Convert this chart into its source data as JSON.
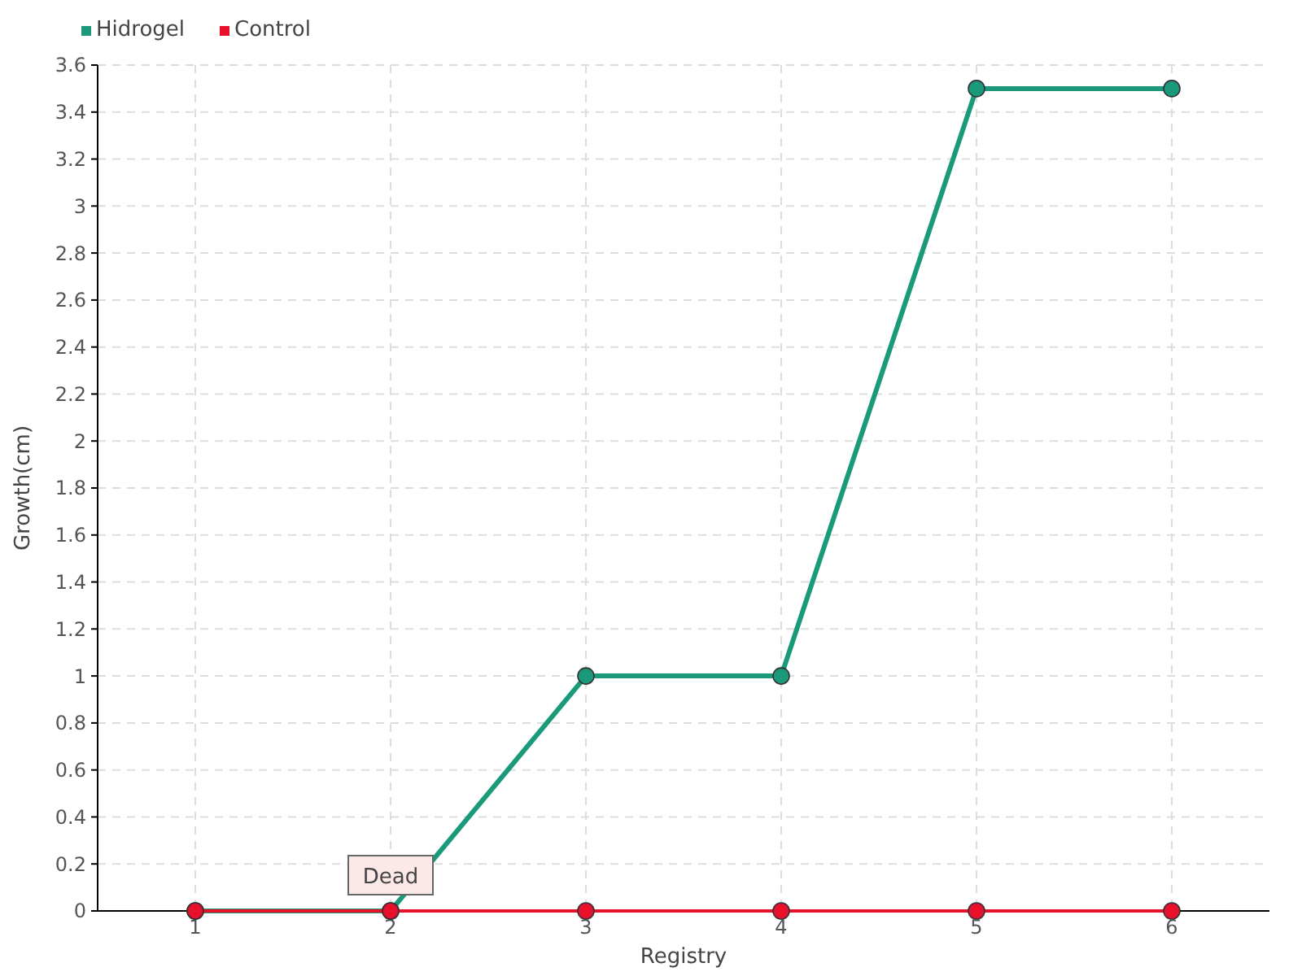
{
  "chart_data": {
    "type": "line",
    "xlabel": "Registry",
    "ylabel": "Growth(cm)",
    "categories": [
      "1",
      "2",
      "3",
      "4",
      "5",
      "6"
    ],
    "series": [
      {
        "name": "Hidrogel",
        "color": "#1a9a7a",
        "values": [
          0,
          0,
          1,
          1,
          3.5,
          3.5
        ]
      },
      {
        "name": "Control",
        "color": "#e8102a",
        "values": [
          0,
          0,
          0,
          0,
          0,
          0
        ]
      }
    ],
    "ylim": [
      0,
      3.6
    ],
    "yticks": [
      0,
      0.2,
      0.4,
      0.6,
      0.8,
      1,
      1.2,
      1.4,
      1.6,
      1.8,
      2,
      2.2,
      2.4,
      2.6,
      2.8,
      3,
      3.2,
      3.4,
      3.6
    ],
    "annotations": [
      {
        "text": "Dead",
        "x": "2",
        "y": 0
      }
    ],
    "grid": true,
    "legend": "top left",
    "marker": "circle",
    "line_style": "solid"
  }
}
